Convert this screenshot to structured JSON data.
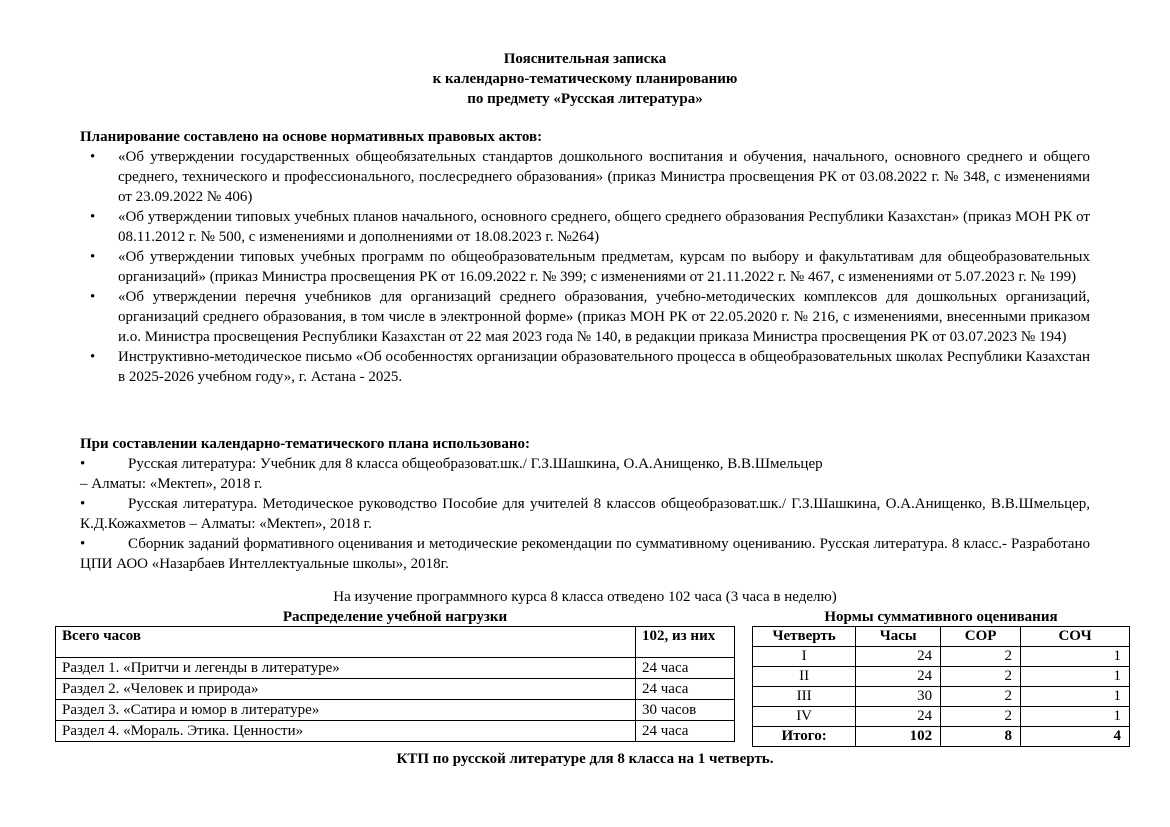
{
  "header": {
    "line1": "Пояснительная записка",
    "line2": "к   календарно-тематическому планированию",
    "line3": "по предмету «Русская литература»"
  },
  "acts": {
    "heading": "Планирование составлено на основе нормативных правовых актов:",
    "items": [
      "«Об утверждении государственных общеобязательных стандартов дошкольного воспитания и обучения, начального, основного среднего и общего среднего, технического и профессионального, послесреднего образования» (приказ Министра просвещения РК от 03.08.2022 г. № 348, с изменениями от 23.09.2022 № 406)",
      "«Об утверждении типовых учебных планов начального, основного среднего, общего среднего образования Республики Казахстан» (приказ МОН РК от 08.11.2012 г. № 500, с изменениями и дополнениями от 18.08.2023 г. №264)",
      "«Об утверждении типовых учебных программ по общеобразовательным предметам, курсам по выбору и факультативам для общеобразовательных организаций» (приказ Министра просвещения РК от 16.09.2022 г. № 399; с изменениями от 21.11.2022 г. № 467, с изменениями от 5.07.2023 г. № 199)",
      "«Об утверждении перечня учебников для организаций среднего образования, учебно-методических комплексов для дошкольных организаций, организаций среднего образования, в том числе в электронной форме» (приказ МОН РК от 22.05.2020 г. № 216, с изменениями, внесенными приказом и.о. Министра просвещения Республики Казахстан от 22 мая 2023 года № 140, в редакции приказа Министра просвещения РК от 03.07.2023 № 194)",
      "Инструктивно-методическое письмо «Об особенностях организации образовательного процесса в общеобразовательных школах Республики Казахстан в 2025-2026 учебном году», г. Астана - 2025."
    ]
  },
  "sources": {
    "heading": "При составлении календарно-тематического плана использовано:",
    "items": [
      {
        "line": "Русская литература: Учебник для 8 класса общеобразоват.шк./ Г.З.Шашкина, О.А.Анищенко, В.В.Шмельцер",
        "cont": "– Алматы: «Мектеп», 2018 г."
      },
      {
        "line": "Русская литература. Методическое руководство Пособие для учителей 8 классов общеобразоват.шк./ Г.З.Шашкина, О.А.Анищенко, В.В.Шмельцер, К.Д.Кожахметов   – Алматы: «Мектеп», 2018 г.",
        "cont": ""
      },
      {
        "line": "Сборник заданий формативного оценивания и методические рекомендации по суммативному оцениванию. Русская литература. 8 класс.- Разработано ЦПИ АОО «Назарбаев Интеллектуальные школы», 2018г.",
        "cont": ""
      }
    ]
  },
  "hours_note": "На изучение программного курса 8 класса отведено 102 часа  (3 часа в неделю)",
  "load_table": {
    "title": "Распределение учебной нагрузки",
    "header": [
      "Всего часов",
      "102, из них"
    ],
    "rows": [
      [
        "Раздел 1. «Притчи и легенды в литературе»",
        "24 часа"
      ],
      [
        "Раздел 2. «Человек и природа»",
        "24 часа"
      ],
      [
        "Раздел 3. «Сатира и юмор в литературе»",
        "30 часов"
      ],
      [
        "Раздел 4. «Мораль. Этика. Ценности»",
        "24 часа"
      ]
    ]
  },
  "norms_table": {
    "title": "Нормы суммативного оценивания",
    "header": [
      "Четверть",
      "Часы",
      "СОР",
      "СОЧ"
    ],
    "rows": [
      [
        "I",
        "24",
        "2",
        "1"
      ],
      [
        "II",
        "24",
        "2",
        "1"
      ],
      [
        "III",
        "30",
        "2",
        "1"
      ],
      [
        "IV",
        "24",
        "2",
        "1"
      ]
    ],
    "total": [
      "Итого:",
      "102",
      "8",
      "4"
    ]
  },
  "footer_title": "КТП по русской литературе для 8 класса на 1 четверть."
}
